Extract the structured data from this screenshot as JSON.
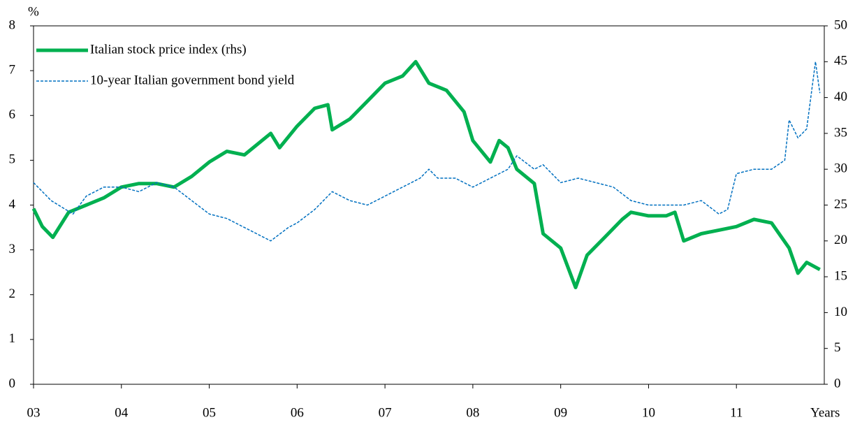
{
  "chart_data": {
    "type": "line",
    "y_label": "%",
    "x_label": "Years",
    "xlim": [
      3,
      12
    ],
    "xticks": [
      {
        "value": 3,
        "label": "03"
      },
      {
        "value": 4,
        "label": "04"
      },
      {
        "value": 5,
        "label": "05"
      },
      {
        "value": 6,
        "label": "06"
      },
      {
        "value": 7,
        "label": "07"
      },
      {
        "value": 8,
        "label": "08"
      },
      {
        "value": 9,
        "label": "09"
      },
      {
        "value": 10,
        "label": "10"
      },
      {
        "value": 11,
        "label": "11"
      }
    ],
    "ylim": [
      0,
      8
    ],
    "yticks": [
      0,
      1,
      2,
      3,
      4,
      5,
      6,
      7,
      8
    ],
    "y2lim": [
      0,
      50
    ],
    "y2ticks": [
      0,
      5,
      10,
      15,
      20,
      25,
      30,
      35,
      40,
      45,
      50
    ],
    "legend": "top-left",
    "series": [
      {
        "name": "Italian stock price index (rhs)",
        "color": "#00b050",
        "axis": "y2",
        "style": "solid",
        "x": [
          3.0,
          3.1,
          3.22,
          3.4,
          3.6,
          3.8,
          4.0,
          4.2,
          4.4,
          4.6,
          4.8,
          5.0,
          5.2,
          5.4,
          5.6,
          5.7,
          5.8,
          6.0,
          6.2,
          6.35,
          6.4,
          6.6,
          6.8,
          7.0,
          7.2,
          7.35,
          7.5,
          7.7,
          7.9,
          8.0,
          8.2,
          8.3,
          8.4,
          8.5,
          8.7,
          8.8,
          9.0,
          9.17,
          9.3,
          9.5,
          9.7,
          9.8,
          10.0,
          10.2,
          10.3,
          10.4,
          10.6,
          10.8,
          11.0,
          11.2,
          11.4,
          11.6,
          11.7,
          11.8,
          11.95
        ],
        "values": [
          24.5,
          22,
          20.5,
          24,
          25,
          26,
          27.5,
          28,
          28,
          27.5,
          29,
          31,
          32.5,
          32,
          34,
          35,
          33,
          36,
          38.5,
          39,
          35.5,
          37,
          39.5,
          42,
          43,
          45,
          42,
          41,
          38,
          34,
          31,
          34,
          33,
          30,
          28,
          21,
          19,
          13.5,
          18,
          20.5,
          23,
          24,
          23.5,
          23.5,
          24,
          20,
          21,
          21.5,
          22,
          23,
          22.5,
          19,
          15.5,
          17,
          16
        ]
      },
      {
        "name": "10-year Italian government bond yield",
        "color": "#0070c0",
        "axis": "y",
        "style": "dashed",
        "x": [
          3.0,
          3.2,
          3.45,
          3.6,
          3.8,
          4.0,
          4.2,
          4.4,
          4.6,
          4.8,
          5.0,
          5.2,
          5.4,
          5.6,
          5.7,
          5.9,
          6.0,
          6.2,
          6.4,
          6.6,
          6.8,
          7.0,
          7.2,
          7.4,
          7.5,
          7.6,
          7.8,
          8.0,
          8.2,
          8.4,
          8.5,
          8.7,
          8.8,
          9.0,
          9.2,
          9.4,
          9.6,
          9.8,
          10.0,
          10.2,
          10.4,
          10.6,
          10.8,
          10.9,
          11.0,
          11.2,
          11.4,
          11.55,
          11.6,
          11.7,
          11.8,
          11.9,
          11.95
        ],
        "values": [
          4.5,
          4.1,
          3.8,
          4.2,
          4.4,
          4.4,
          4.3,
          4.5,
          4.4,
          4.1,
          3.8,
          3.7,
          3.5,
          3.3,
          3.2,
          3.5,
          3.6,
          3.9,
          4.3,
          4.1,
          4.0,
          4.2,
          4.4,
          4.6,
          4.8,
          4.6,
          4.6,
          4.4,
          4.6,
          4.8,
          5.1,
          4.8,
          4.9,
          4.5,
          4.6,
          4.5,
          4.4,
          4.1,
          4.0,
          4.0,
          4.0,
          4.1,
          3.8,
          3.9,
          4.7,
          4.8,
          4.8,
          5.0,
          5.9,
          5.5,
          5.7,
          7.2,
          6.5
        ]
      }
    ]
  }
}
